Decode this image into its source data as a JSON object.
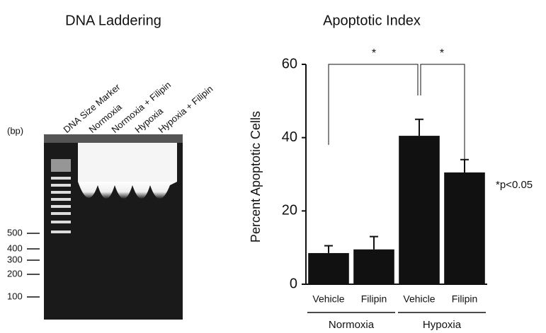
{
  "gel": {
    "title": "DNA Laddering",
    "unit": "(bp)",
    "lanes": [
      "DNA Size Marker",
      "Normoxia",
      "Normoxia + Filipin",
      "Hypoxia",
      "Hypoxia + Filipin"
    ],
    "size_markers": [
      500,
      400,
      300,
      200,
      100
    ]
  },
  "chart_data": {
    "type": "bar",
    "title": "Apoptotic Index",
    "y_label": "Percent Apoptotic Cells",
    "categories": [
      "Vehicle",
      "Filipin",
      "Vehicle",
      "Filipin"
    ],
    "groups": [
      "Normoxia",
      "Hypoxia"
    ],
    "series": [
      {
        "color": "#111111",
        "values": [
          8.5,
          9.5,
          40.5,
          30.5
        ],
        "errors": [
          2,
          3.5,
          4.5,
          3.5
        ]
      }
    ],
    "ylim": [
      0,
      60
    ],
    "yticks": [
      0,
      20,
      40,
      60
    ],
    "significance": [
      "*",
      "*"
    ],
    "annotation": "*p<0.05"
  }
}
